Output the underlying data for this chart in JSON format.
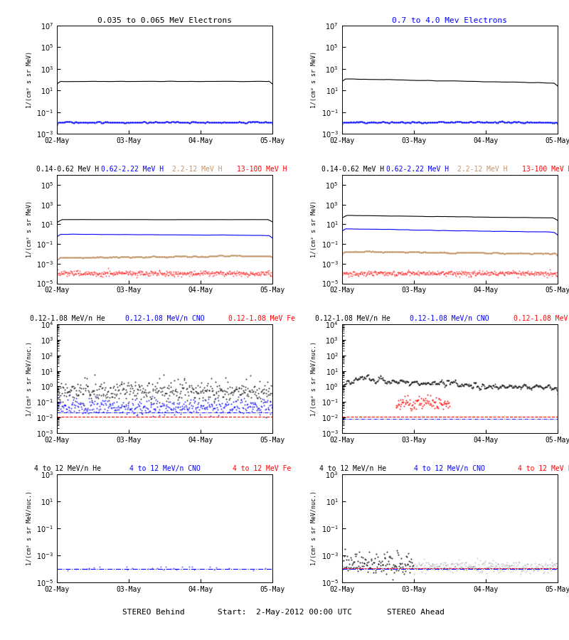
{
  "title_center": "Start:  2-May-2012 00:00 UTC",
  "xlabel_left": "STEREO Behind",
  "xlabel_right": "STEREO Ahead",
  "x_dates": [
    "02-May",
    "03-May",
    "04-May",
    "05-May"
  ],
  "background_color": "#ffffff",
  "panel_titles_row0_left": "0.035 to 0.065 MeV Electrons",
  "panel_titles_row0_right": "0.7 to 4.0 Mev Electrons",
  "panel_titles_row0_right_color": "blue",
  "panel_titles_row1": [
    "0.14-0.62 MeV H",
    "0.62-2.22 MeV H",
    "2.2-12 MeV H",
    "13-100 MeV H"
  ],
  "panel_titles_row1_colors": [
    "black",
    "blue",
    "#c4956a",
    "red"
  ],
  "panel_titles_row2": [
    "0.12-1.08 MeV/n He",
    "0.12-1.08 MeV/n CNO",
    "0.12-1.08 MeV Fe"
  ],
  "panel_titles_row2_colors": [
    "black",
    "blue",
    "red"
  ],
  "panel_titles_row3": [
    "4 to 12 MeV/n He",
    "4 to 12 MeV/n CNO",
    "4 to 12 MeV Fe"
  ],
  "panel_titles_row3_colors": [
    "black",
    "blue",
    "red"
  ],
  "ylabel_top": "1/(cm² s sr MeV)",
  "ylabel_bottom": "1/(cm² s sr MeV/nuc.)",
  "seed": 42
}
